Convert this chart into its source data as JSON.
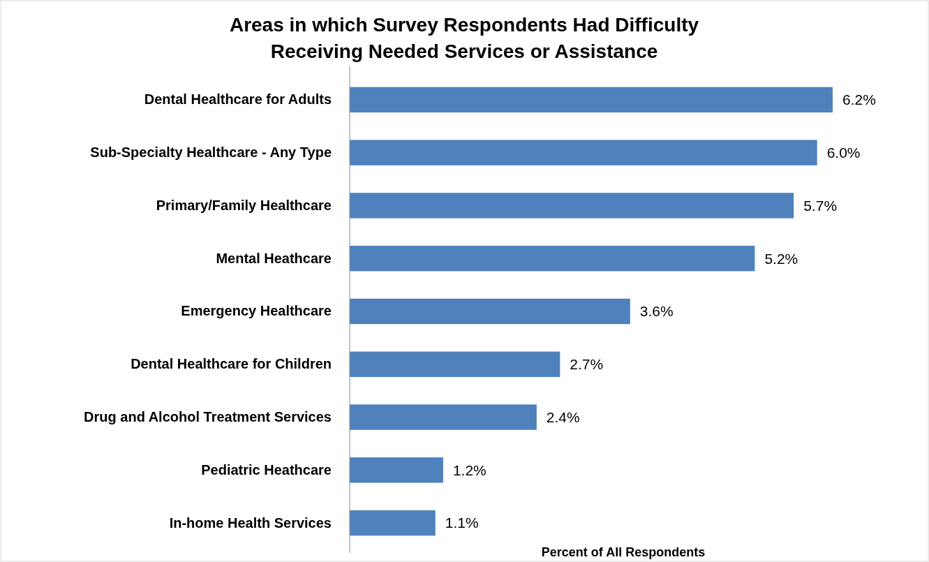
{
  "chart_data": {
    "type": "bar",
    "orientation": "horizontal",
    "title": "Areas in which Survey Respondents Had Difficulty\nReceiving Needed Services or Assistance",
    "xlabel": "Percent of All Respondents",
    "categories": [
      "Dental Healthcare for Adults",
      "Sub-Specialty Healthcare - Any Type",
      "Primary/Family Healthcare",
      "Mental Heathcare",
      "Emergency Healthcare",
      "Dental Healthcare for Children",
      "Drug and Alcohol Treatment Services",
      "Pediatric Heathcare",
      "In-home Health Services"
    ],
    "values": [
      6.2,
      6.0,
      5.7,
      5.2,
      3.6,
      2.7,
      2.4,
      1.2,
      1.1
    ],
    "value_labels": [
      "6.2%",
      "6.0%",
      "5.7%",
      "5.2%",
      "3.6%",
      "2.7%",
      "2.4%",
      "1.2%",
      "1.1%"
    ],
    "color": "#4f81bd"
  }
}
